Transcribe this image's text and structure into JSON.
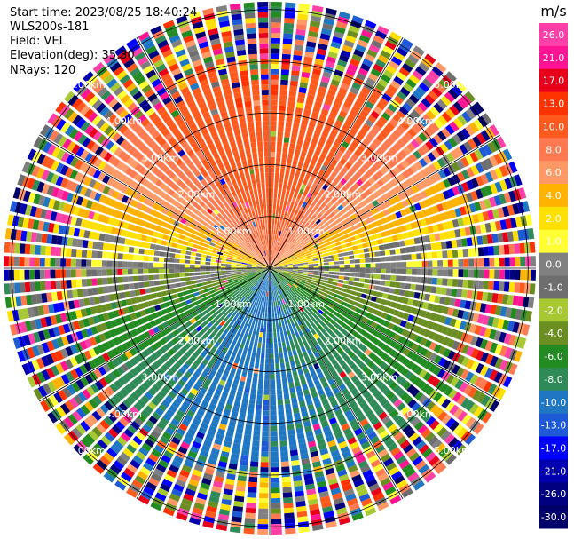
{
  "info": {
    "start_time": "Start time: 2023/08/25 18:40:24",
    "instrument": "WLS200s-181",
    "field": "Field: VEL",
    "elevation": "Elevation(deg): 35.30",
    "nrays": "NRays: 120"
  },
  "chart_data": {
    "type": "heatmap",
    "projection": "polar (PPI)",
    "field": "VEL",
    "units": "m/s",
    "nrays": 120,
    "elevation_deg": 35.3,
    "range_ring_labels": [
      "1.00km",
      "2.00km",
      "3.00km",
      "4.00km",
      "5.00km"
    ],
    "range_rings_km": [
      1,
      2,
      3,
      4,
      5
    ],
    "max_range_km": 5.15,
    "colorbar": {
      "label": "m/s",
      "ticks": [
        "26.0",
        "21.0",
        "17.0",
        "13.0",
        "10.0",
        "8.0",
        "6.0",
        "4.0",
        "2.0",
        "1.0",
        "0.0",
        "-1.0",
        "-2.0",
        "-4.0",
        "-6.0",
        "-8.0",
        "-10.0",
        "-13.0",
        "-17.0",
        "-21.0",
        "-26.0",
        "-30.0"
      ],
      "colors": [
        "#ff3fa8",
        "#ff1493",
        "#e8001a",
        "#ff3300",
        "#ff5a1e",
        "#ff7a50",
        "#ff9a66",
        "#ffb300",
        "#ffe000",
        "#ffff33",
        "#808080",
        "#6e6e6e",
        "#a6c832",
        "#6b8e23",
        "#228b22",
        "#2e8b57",
        "#1f77c4",
        "#1e5ad6",
        "#0000ff",
        "#0000b0",
        "#000080",
        "#00006a"
      ]
    },
    "pattern": {
      "positive_region": "north (radial velocity away, warm colors)",
      "negative_region": "south (radial velocity toward, cool colors)",
      "noise_region": "outer ranges beyond ~3.5 km (random colors)"
    }
  }
}
